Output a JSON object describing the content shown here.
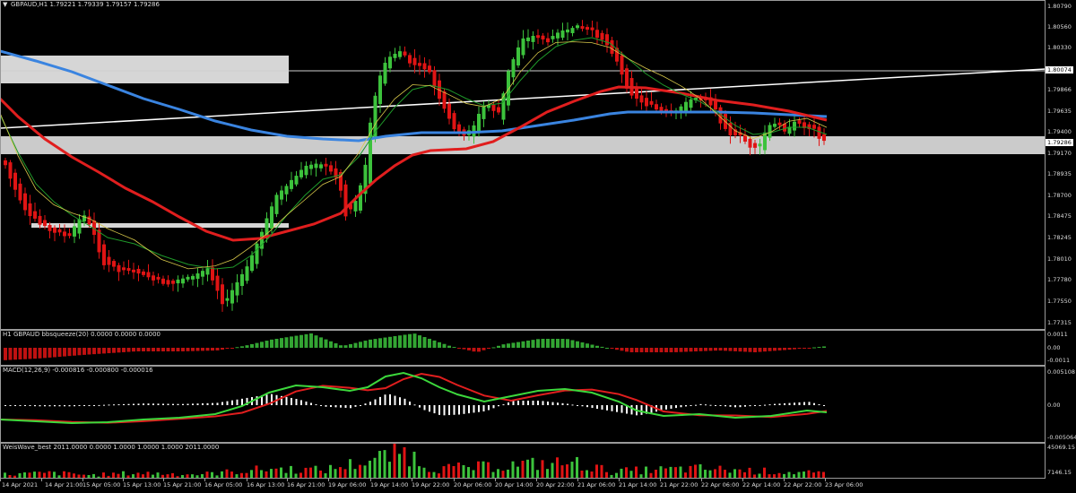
{
  "main": {
    "title": "GBPAUD,H1  1.79221 1.79339 1.79157 1.79286",
    "price_labels": [
      "1.80790",
      "1.80560",
      "1.80330",
      "1.80074",
      "1.79866",
      "1.79635",
      "1.79400",
      "1.79286",
      "1.79170",
      "1.78935",
      "1.78700",
      "1.78475",
      "1.78245",
      "1.78010",
      "1.77780",
      "1.77550",
      "1.77315"
    ],
    "current_price": "1.79286",
    "level_price": "1.80074"
  },
  "squeeze": {
    "title": "H1 GBPAUD bbsqueeze(20) 0.0000 0.0000 0.0000",
    "labels": [
      "0.0011",
      "0.00",
      "-0.0011"
    ]
  },
  "macd": {
    "title": "MACD(12,26,9) -0.000816 -0.000800 -0.000016",
    "labels": [
      "0.005108",
      "0.00",
      "-0.005064"
    ]
  },
  "weis": {
    "title": "WeisWave_best 2011.0000 0.0000 1.0000 1.0000 1.0000 2011.0000",
    "labels": [
      "45069.15",
      "7146.15"
    ]
  },
  "time_labels": [
    "14 Apr 2021",
    "14 Apr 21:00",
    "15 Apr 05:00",
    "15 Apr 13:00",
    "15 Apr 21:00",
    "16 Apr 05:00",
    "16 Apr 13:00",
    "16 Apr 21:00",
    "19 Apr 06:00",
    "19 Apr 14:00",
    "19 Apr 22:00",
    "20 Apr 06:00",
    "20 Apr 14:00",
    "20 Apr 22:00",
    "21 Apr 06:00",
    "21 Apr 14:00",
    "21 Apr 22:00",
    "22 Apr 06:00",
    "22 Apr 14:00",
    "22 Apr 22:00",
    "23 Apr 06:00"
  ],
  "colors": {
    "bull": "#3cc23c",
    "bear": "#e01414",
    "ma_blue": "#3a84e0",
    "ma_red": "#e01e1e",
    "ma_green": "#1f9a2a",
    "ma_yellow": "#d8c84a",
    "zone": "#d6d6d6",
    "trend": "#ffffff",
    "macd_line": "#3cd83c",
    "signal_line": "#e01e1e",
    "histogram": "#ffffff"
  },
  "icons": {
    "menu": "triangle-down-icon"
  }
}
